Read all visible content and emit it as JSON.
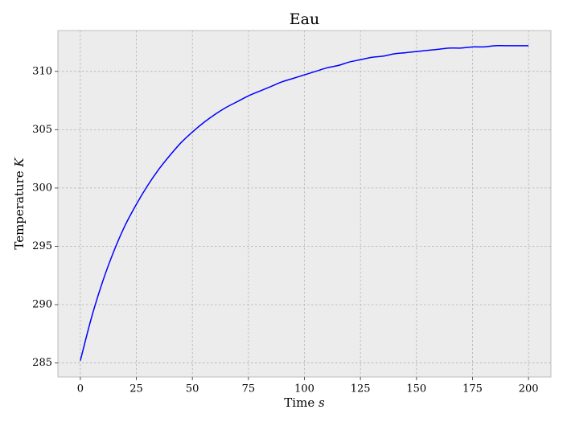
{
  "chart_data": {
    "type": "line",
    "title": "Eau",
    "xlabel": "Time",
    "xlabel_unit": "s",
    "ylabel": "Temperature",
    "ylabel_unit": "K",
    "xlim": [
      -10,
      210
    ],
    "ylim": [
      283.8,
      313.5
    ],
    "xticks": [
      0,
      25,
      50,
      75,
      100,
      125,
      150,
      175,
      200
    ],
    "yticks": [
      285,
      290,
      295,
      300,
      305,
      310
    ],
    "grid": true,
    "series": [
      {
        "color": "#0000ff",
        "x": [
          0,
          5,
          10,
          15,
          20,
          25,
          30,
          35,
          40,
          45,
          50,
          55,
          60,
          65,
          70,
          75,
          80,
          85,
          90,
          95,
          100,
          105,
          110,
          115,
          120,
          125,
          130,
          135,
          140,
          145,
          150,
          155,
          160,
          165,
          170,
          175,
          180,
          185,
          190,
          195,
          200
        ],
        "y": [
          285.2,
          288.9,
          292.0,
          294.6,
          296.8,
          298.6,
          300.2,
          301.6,
          302.8,
          303.9,
          304.8,
          305.6,
          306.3,
          306.9,
          307.4,
          307.9,
          308.3,
          308.7,
          309.1,
          309.4,
          309.7,
          310.0,
          310.3,
          310.5,
          310.8,
          311.0,
          311.2,
          311.3,
          311.5,
          311.6,
          311.7,
          311.8,
          311.9,
          312.0,
          312.0,
          312.1,
          312.1,
          312.2,
          312.2,
          312.2,
          312.2
        ]
      }
    ]
  }
}
